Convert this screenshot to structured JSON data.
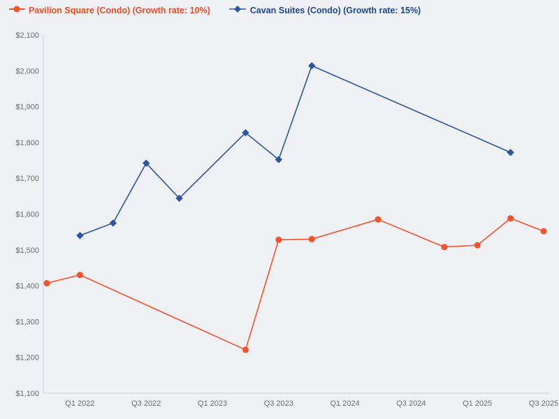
{
  "page": {
    "background": "#F0F1F4",
    "axis_color": "#C7D1E6",
    "tick_text_color": "#696E74"
  },
  "chart_data": {
    "type": "line",
    "title": "",
    "grid": false,
    "legend_position": "top-left",
    "x_axis": {
      "quarters": [
        "Q4 2021",
        "Q1 2022",
        "Q2 2022",
        "Q3 2022",
        "Q4 2022",
        "Q1 2023",
        "Q2 2023",
        "Q3 2023",
        "Q4 2023",
        "Q1 2024",
        "Q2 2024",
        "Q3 2024",
        "Q4 2024",
        "Q1 2025",
        "Q2 2025",
        "Q3 2025"
      ],
      "tick_indices": [
        1,
        3,
        5,
        7,
        9,
        11,
        13,
        15
      ],
      "tick_labels": [
        "Q1 2022",
        "Q3 2022",
        "Q1 2023",
        "Q3 2023",
        "Q1 2024",
        "Q3 2024",
        "Q1 2025",
        "Q3 2025"
      ]
    },
    "y_axis": {
      "min": 1100,
      "max": 2100,
      "step": 100,
      "tick_labels": [
        "$1,100",
        "$1,200",
        "$1,300",
        "$1,400",
        "$1,500",
        "$1,600",
        "$1,700",
        "$1,800",
        "$1,900",
        "$2,000",
        "$2,100"
      ]
    },
    "series": [
      {
        "id": "pavilion-square",
        "name": "Pavilion Square (Condo) (Growth rate: 10%)",
        "color": "#F7522A",
        "label_color": "#F04E22",
        "marker": "circle",
        "points": [
          {
            "quarter": "Q4 2021",
            "value": 1407
          },
          {
            "quarter": "Q1 2022",
            "value": 1430
          },
          {
            "quarter": "Q2 2023",
            "value": 1221
          },
          {
            "quarter": "Q3 2023",
            "value": 1528
          },
          {
            "quarter": "Q4 2023",
            "value": 1530
          },
          {
            "quarter": "Q2 2024",
            "value": 1585
          },
          {
            "quarter": "Q4 2024",
            "value": 1508
          },
          {
            "quarter": "Q1 2025",
            "value": 1513
          },
          {
            "quarter": "Q2 2025",
            "value": 1588
          },
          {
            "quarter": "Q3 2025",
            "value": 1552
          }
        ]
      },
      {
        "id": "cavan-suites",
        "name": "Cavan Suites (Condo) (Growth rate: 15%)",
        "color": "#2B57A0",
        "label_color": "#1B4697",
        "marker": "diamond",
        "points": [
          {
            "quarter": "Q1 2022",
            "value": 1540
          },
          {
            "quarter": "Q2 2022",
            "value": 1575
          },
          {
            "quarter": "Q3 2022",
            "value": 1742
          },
          {
            "quarter": "Q4 2022",
            "value": 1644
          },
          {
            "quarter": "Q2 2023",
            "value": 1827
          },
          {
            "quarter": "Q3 2023",
            "value": 1752
          },
          {
            "quarter": "Q4 2023",
            "value": 2014
          },
          {
            "quarter": "Q2 2025",
            "value": 1772
          }
        ]
      }
    ]
  }
}
